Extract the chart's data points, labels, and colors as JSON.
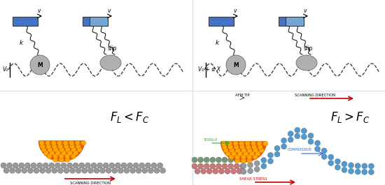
{
  "bg_color": "#ffffff",
  "fig_width": 5.5,
  "fig_height": 2.65,
  "dpi": 100,
  "top_left_V0": "V₀",
  "top_right_V0": "V₀ + α X",
  "k_label": "k",
  "M_label": "M",
  "slip_label": "slip",
  "v_label": "v",
  "block_color": "#4472c4",
  "block2_color": "#7eb0d4",
  "sphere_color": "#b0b0b0",
  "wave_color": "#333333",
  "formula_left": "$F_L < F_C$",
  "formula_right": "$F_L > F_C$",
  "scan_label": "SCANNING DIRECTION",
  "afm_tip_label": "AFM TIP",
  "tensile_label": "TENSILE",
  "compressive_label": "COMPRESSIVE",
  "shear_label": "SHEAR STRESS",
  "scan_arrow_color": "#cc0000",
  "tensile_color": "#33aa33",
  "compressive_color": "#3366cc",
  "shear_color": "#cc0000",
  "tip_outer": "#e65c00",
  "tip_inner": "#ffaa00",
  "graphene_gray": "#999999",
  "graphene_green": "#779977",
  "graphene_red": "#cc7777",
  "graphene_blue": "#5599cc",
  "divider_color": "#dddddd"
}
